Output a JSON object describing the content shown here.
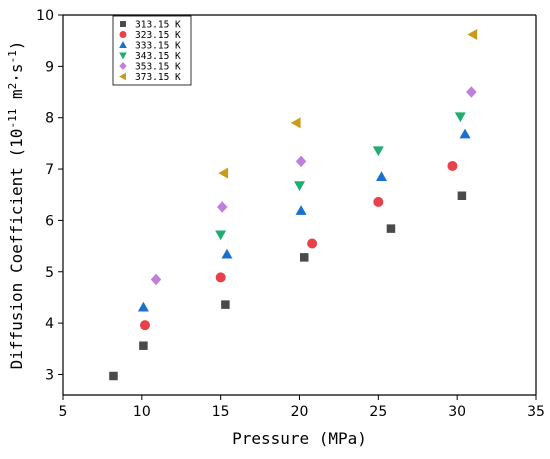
{
  "chart_data": {
    "type": "scatter",
    "xlabel": "Pressure (MPa)",
    "ylabel_prefix": "Diffusion Coefficient (10",
    "ylabel_exp1": "-11",
    "ylabel_mid": " m",
    "ylabel_exp2": "2",
    "ylabel_suffix": "·s",
    "ylabel_exp3": "-1",
    "ylabel_close": ")",
    "xlim": [
      5,
      35
    ],
    "ylim": [
      2.6,
      10
    ],
    "xticks": [
      5,
      10,
      15,
      20,
      25,
      30,
      35
    ],
    "yticks": [
      3,
      4,
      5,
      6,
      7,
      8,
      9,
      10
    ],
    "grid": false,
    "legend_position": "top-left",
    "series": [
      {
        "name": "313.15 K",
        "marker": "square",
        "color": "#4a4a4a",
        "points": [
          [
            8.2,
            2.97
          ],
          [
            10.1,
            3.56
          ],
          [
            15.3,
            4.36
          ],
          [
            20.3,
            5.28
          ],
          [
            25.8,
            5.84
          ],
          [
            30.3,
            6.48
          ]
        ]
      },
      {
        "name": "323.15 K",
        "marker": "circle",
        "color": "#e8414a",
        "points": [
          [
            10.2,
            3.96
          ],
          [
            15.0,
            4.89
          ],
          [
            20.8,
            5.55
          ],
          [
            25.0,
            6.36
          ],
          [
            29.7,
            7.06
          ]
        ]
      },
      {
        "name": "333.15 K",
        "marker": "triangle-up",
        "color": "#1a6fd1",
        "points": [
          [
            10.1,
            4.31
          ],
          [
            15.4,
            5.34
          ],
          [
            20.1,
            6.19
          ],
          [
            25.2,
            6.85
          ],
          [
            30.5,
            7.68
          ]
        ]
      },
      {
        "name": "343.15 K",
        "marker": "triangle-down",
        "color": "#1eae72",
        "points": [
          [
            15.0,
            5.72
          ],
          [
            20.0,
            6.68
          ],
          [
            25.0,
            7.36
          ],
          [
            30.2,
            8.02
          ]
        ]
      },
      {
        "name": "353.15 K",
        "marker": "diamond",
        "color": "#c07fdf",
        "points": [
          [
            10.9,
            4.85
          ],
          [
            15.1,
            6.26
          ],
          [
            20.1,
            7.15
          ],
          [
            30.9,
            8.5
          ]
        ]
      },
      {
        "name": "373.15 K",
        "marker": "triangle-left",
        "color": "#cc9a1a",
        "points": [
          [
            15.2,
            6.92
          ],
          [
            19.8,
            7.9
          ],
          [
            31.0,
            9.62
          ]
        ]
      }
    ]
  }
}
